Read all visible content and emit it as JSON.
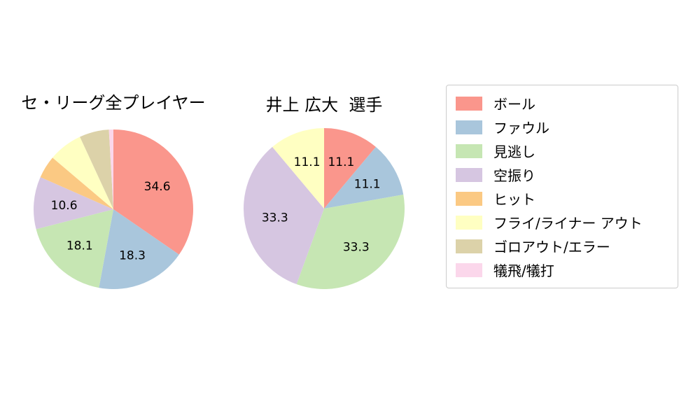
{
  "figure": {
    "background": "#ffffff"
  },
  "legend": {
    "items": [
      {
        "label": "ボール",
        "color": "#fa968c"
      },
      {
        "label": "ファウル",
        "color": "#a9c6dc"
      },
      {
        "label": "見逃し",
        "color": "#c6e6b3"
      },
      {
        "label": "空振り",
        "color": "#d6c6e1"
      },
      {
        "label": "ヒット",
        "color": "#fbc983"
      },
      {
        "label": "フライ/ライナー アウト",
        "color": "#ffffc2"
      },
      {
        "label": "ゴロアウト/エラー",
        "color": "#dcd2a9"
      },
      {
        "label": "犠飛/犠打",
        "color": "#fbd7eb"
      }
    ]
  },
  "chart_data": [
    {
      "type": "pie",
      "title": "セ・リーグ全プレイヤー",
      "start_angle": "top",
      "direction": "clockwise",
      "label_min": 10,
      "categories": [
        "ボール",
        "ファウル",
        "見逃し",
        "空振り",
        "ヒット",
        "フライ/ライナー アウト",
        "ゴロアウト/エラー",
        "犠飛/犠打"
      ],
      "values": [
        34.6,
        18.3,
        18.1,
        10.6,
        4.6,
        6.9,
        6.0,
        0.9
      ],
      "colors": [
        "#fa968c",
        "#a9c6dc",
        "#c6e6b3",
        "#d6c6e1",
        "#fbc983",
        "#ffffc2",
        "#dcd2a9",
        "#fbd7eb"
      ],
      "shown_value_labels": [
        "34.6",
        "18.3",
        "18.1",
        "10.6"
      ]
    },
    {
      "type": "pie",
      "title": "井上 広大  選手",
      "start_angle": "top",
      "direction": "clockwise",
      "label_min": 10,
      "categories": [
        "ボール",
        "ファウル",
        "見逃し",
        "空振り",
        "フライ/ライナー アウト"
      ],
      "values": [
        11.1,
        11.1,
        33.3,
        33.3,
        11.1
      ],
      "colors": [
        "#fa968c",
        "#a9c6dc",
        "#c6e6b3",
        "#d6c6e1",
        "#ffffc2"
      ],
      "shown_value_labels": [
        "11.1",
        "11.1",
        "33.3",
        "33.3",
        "11.1"
      ]
    }
  ]
}
